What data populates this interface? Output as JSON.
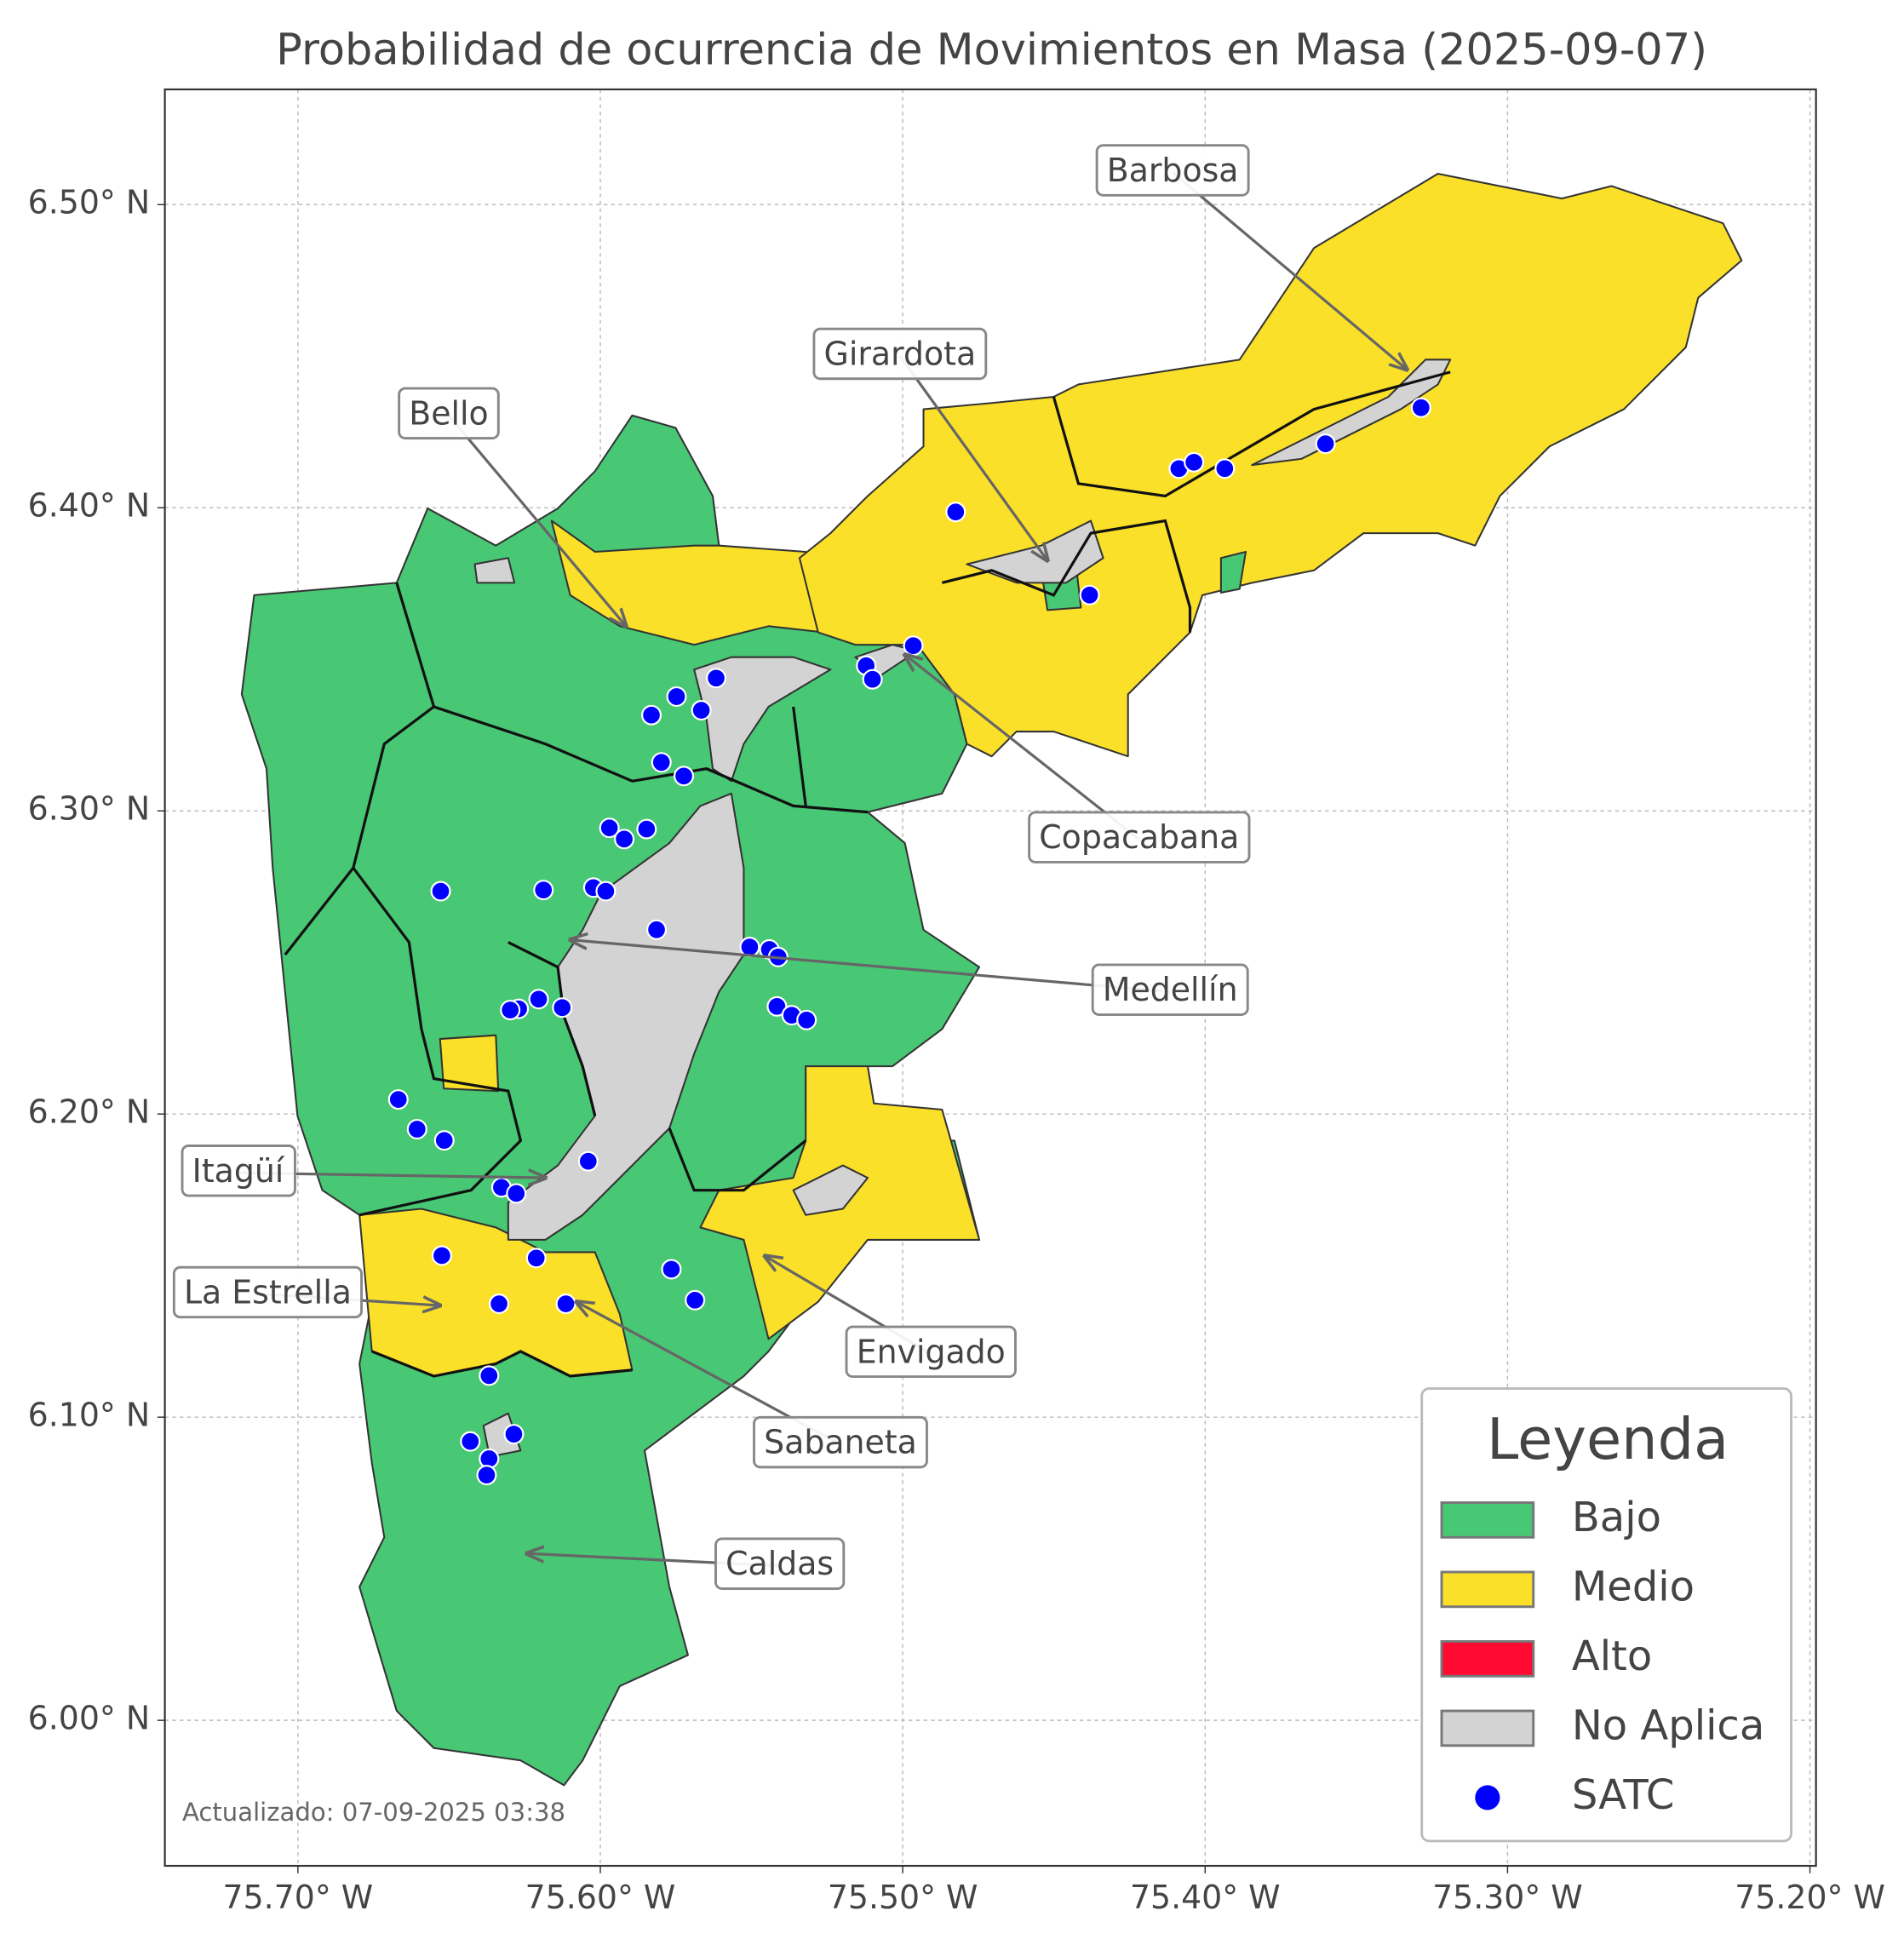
{
  "chart_data": {
    "type": "scatter",
    "title": "Probabilidad de ocurrencia de Movimientos en Masa (2025-09-07)",
    "xlim": [
      -75.744,
      -75.198
    ],
    "ylim": [
      5.952,
      6.538
    ],
    "xticks": [
      {
        "value": -75.7,
        "label": "75.70° W"
      },
      {
        "value": -75.6,
        "label": "75.60° W"
      },
      {
        "value": -75.5,
        "label": "75.50° W"
      },
      {
        "value": -75.4,
        "label": "75.40° W"
      },
      {
        "value": -75.3,
        "label": "75.30° W"
      },
      {
        "value": -75.2,
        "label": "75.20° W"
      }
    ],
    "yticks": [
      {
        "value": 6.0,
        "label": "6.00° N"
      },
      {
        "value": 6.1,
        "label": "6.10° N"
      },
      {
        "value": 6.2,
        "label": "6.20° N"
      },
      {
        "value": 6.3,
        "label": "6.30° N"
      },
      {
        "value": 6.4,
        "label": "6.40° N"
      },
      {
        "value": 6.5,
        "label": "6.50° N"
      }
    ],
    "grid": true,
    "legend": {
      "title": "Leyenda",
      "corner": "lower right"
    },
    "classes": [
      {
        "name": "Bajo",
        "color": "#48c774"
      },
      {
        "name": "Medio",
        "color": "#fbe02a"
      },
      {
        "name": "Alto",
        "color": "#ff0a33"
      },
      {
        "name": "No Aplica",
        "color": "#d3d3d3"
      }
    ],
    "series": [
      {
        "name": "SATC",
        "color": "#0000ff",
        "x": [
          -75.4825,
          -75.4087,
          -75.4037,
          -75.3935,
          -75.3602,
          -75.3286,
          -75.4382,
          -75.4965,
          -75.5121,
          -75.51,
          -75.5617,
          -75.5748,
          -75.5831,
          -75.5666,
          -75.5798,
          -75.5724,
          -75.597,
          -75.5921,
          -75.5847,
          -75.6023,
          -75.5982,
          -75.6188,
          -75.6528,
          -75.5814,
          -75.5506,
          -75.5441,
          -75.5412,
          -75.5416,
          -75.5367,
          -75.5318,
          -75.6204,
          -75.6126,
          -75.627,
          -75.6298,
          -75.6668,
          -75.6606,
          -75.6516,
          -75.604,
          -75.6327,
          -75.6278,
          -75.6524,
          -75.6212,
          -75.5765,
          -75.5687,
          -75.6335,
          -75.6114,
          -75.6368,
          -75.643,
          -75.6286,
          -75.6368,
          -75.6376
        ],
        "y": [
          6.3986,
          6.4129,
          6.415,
          6.4129,
          6.4211,
          6.433,
          6.3712,
          6.3545,
          6.3479,
          6.3434,
          6.3438,
          6.3377,
          6.3316,
          6.3332,
          6.316,
          6.3115,
          6.2944,
          6.2907,
          6.294,
          6.2747,
          6.2735,
          6.2739,
          6.2735,
          6.2608,
          6.2551,
          6.2543,
          6.2518,
          6.2355,
          6.2326,
          6.231,
          6.2379,
          6.2351,
          6.2347,
          6.2343,
          6.2048,
          6.195,
          6.1913,
          6.1844,
          6.1758,
          6.1738,
          6.1533,
          6.1525,
          6.1488,
          6.1386,
          6.1374,
          6.1374,
          6.1137,
          6.092,
          6.0944,
          6.0863,
          6.0809
        ]
      }
    ],
    "annotations": [
      {
        "text": "Barbosa"
      },
      {
        "text": "Girardota"
      },
      {
        "text": "Bello"
      },
      {
        "text": "Copacabana"
      },
      {
        "text": "Medellín"
      },
      {
        "text": "Itagüí"
      },
      {
        "text": "La Estrella"
      },
      {
        "text": "Envigado"
      },
      {
        "text": "Sabaneta"
      },
      {
        "text": "Caldas"
      }
    ],
    "footnote": "Actualizado: 07-09-2025 03:38"
  }
}
